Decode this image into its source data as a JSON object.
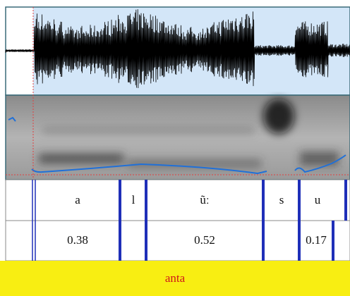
{
  "tiers": [
    {
      "intervals": [
        "a",
        "l",
        "ũː",
        "s",
        "u"
      ]
    },
    {
      "intervals": [
        0.38,
        0.52,
        0.17
      ]
    },
    {
      "intervals": [
        "anta"
      ]
    }
  ]
}
